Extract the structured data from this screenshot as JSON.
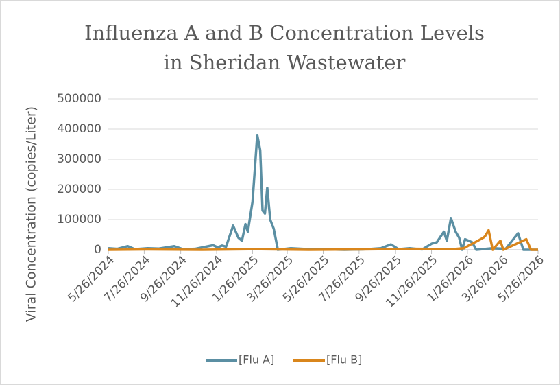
{
  "chart_data": {
    "type": "line",
    "title": [
      "Influenza A and B Concentration Levels",
      "in Sheridan Wastewater"
    ],
    "y_label": "Viral Concentration (copies/Liter)",
    "xlim": [
      "5/26/2024",
      "5/26/2026"
    ],
    "xticks": [
      "5/26/2024",
      "7/26/2024",
      "9/26/2024",
      "11/26/2024",
      "1/26/2025",
      "3/26/2025",
      "5/26/2025",
      "7/26/2025",
      "9/26/2025",
      "11/26/2025",
      "1/26/2026",
      "3/26/2026",
      "5/26/2026"
    ],
    "ylim": [
      0,
      500000
    ],
    "yticks": [
      0,
      100000,
      200000,
      300000,
      400000,
      500000
    ],
    "grid": true,
    "legend": "bottom",
    "series": [
      {
        "name": "[Flu A]",
        "color": "#5b8fa3",
        "x": [
          "5/26/2024",
          "6/10/2024",
          "6/28/2024",
          "7/10/2024",
          "8/1/2024",
          "8/20/2024",
          "9/15/2024",
          "9/30/2024",
          "10/20/2024",
          "11/20/2024",
          "11/28/2024",
          "12/5/2024",
          "12/12/2024",
          "12/24/2024",
          "1/2/2025",
          "1/8/2025",
          "1/14/2025",
          "1/18/2025",
          "1/26/2025",
          "2/3/2025",
          "2/8/2025",
          "2/12/2025",
          "2/16/2025",
          "2/20/2025",
          "2/25/2025",
          "3/3/2025",
          "3/10/2025",
          "4/1/2025",
          "5/1/2025",
          "6/1/2025",
          "7/1/2025",
          "8/1/2025",
          "9/1/2025",
          "9/18/2025",
          "10/1/2025",
          "10/20/2025",
          "11/10/2025",
          "11/26/2025",
          "12/5/2025",
          "12/17/2025",
          "12/22/2025",
          "12/29/2025",
          "1/6/2026",
          "1/12/2026",
          "1/17/2026",
          "1/22/2026",
          "2/3/2026",
          "2/10/2026",
          "3/10/2026",
          "4/1/2026",
          "4/22/2026",
          "5/1/2026",
          "5/26/2026"
        ],
        "values": [
          5000,
          3000,
          12000,
          2000,
          5000,
          4000,
          12000,
          2000,
          3000,
          15000,
          8000,
          14000,
          10000,
          80000,
          40000,
          30000,
          85000,
          60000,
          160000,
          380000,
          330000,
          130000,
          120000,
          205000,
          100000,
          70000,
          0,
          5000,
          2000,
          1000,
          0,
          1000,
          5000,
          18000,
          2000,
          5000,
          1000,
          20000,
          25000,
          60000,
          30000,
          105000,
          60000,
          40000,
          0,
          35000,
          25000,
          0,
          5000,
          3000,
          55000,
          0,
          0
        ]
      },
      {
        "name": "[Flu B]",
        "color": "#d9861c",
        "x": [
          "5/26/2024",
          "8/1/2024",
          "11/1/2024",
          "2/1/2025",
          "5/1/2025",
          "8/1/2025",
          "11/1/2025",
          "1/1/2026",
          "1/20/2026",
          "1/29/2026",
          "2/8/2026",
          "2/22/2026",
          "2/25/2026",
          "3/3/2026",
          "3/10/2026",
          "3/23/2026",
          "3/28/2026",
          "4/25/2026",
          "5/6/2026",
          "5/14/2026",
          "5/26/2026"
        ],
        "values": [
          0,
          1000,
          0,
          2000,
          0,
          1000,
          3000,
          2000,
          5000,
          15000,
          25000,
          40000,
          45000,
          65000,
          0,
          30000,
          0,
          25000,
          35000,
          0,
          0
        ]
      }
    ]
  }
}
